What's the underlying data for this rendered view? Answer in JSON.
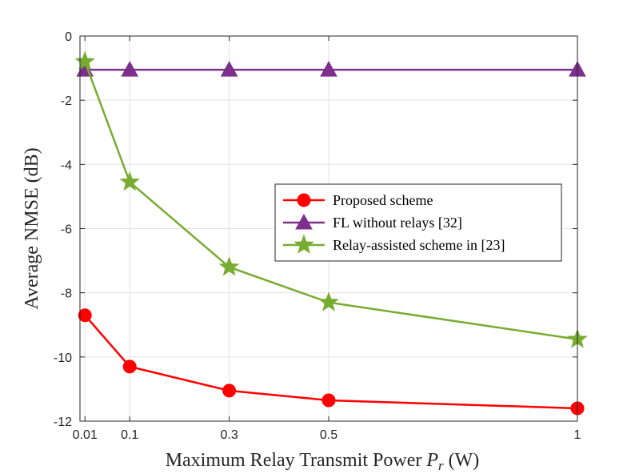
{
  "chart_data": {
    "type": "line",
    "title": "",
    "xlabel": "Maximum Relay Transmit Power P_r (W)",
    "xlabel_parts": {
      "prefix": "Maximum Relay Transmit Power ",
      "var": "P",
      "sub": "r",
      "suffix": " (W)"
    },
    "ylabel": "Average NMSE (dB)",
    "xlim": [
      0,
      1
    ],
    "ylim": [
      -12,
      0
    ],
    "x": [
      0.01,
      0.1,
      0.3,
      0.5,
      1
    ],
    "xticks": [
      0.01,
      0.1,
      0.3,
      0.5,
      1
    ],
    "xtick_labels": [
      "0.01",
      "0.1",
      "0.3",
      "0.5",
      "1"
    ],
    "yticks": [
      0,
      -2,
      -4,
      -6,
      -8,
      -10,
      -12
    ],
    "ytick_labels": [
      "0",
      "-2",
      "-4",
      "-6",
      "-8",
      "-10",
      "-12"
    ],
    "grid": true,
    "legend_position": "center-right",
    "series": [
      {
        "name": "Proposed scheme",
        "values": [
          -8.7,
          -10.3,
          -11.05,
          -11.35,
          -11.6
        ],
        "color": "#ff0000",
        "marker": "circle"
      },
      {
        "name": "FL without relays [32]",
        "values": [
          -1.05,
          -1.05,
          -1.05,
          -1.05,
          -1.05
        ],
        "color": "#7e2f8e",
        "marker": "triangle"
      },
      {
        "name": "Relay-assisted scheme in [23]",
        "values": [
          -0.8,
          -4.55,
          -7.2,
          -8.3,
          -9.45
        ],
        "color": "#77ac30",
        "marker": "star"
      }
    ]
  }
}
